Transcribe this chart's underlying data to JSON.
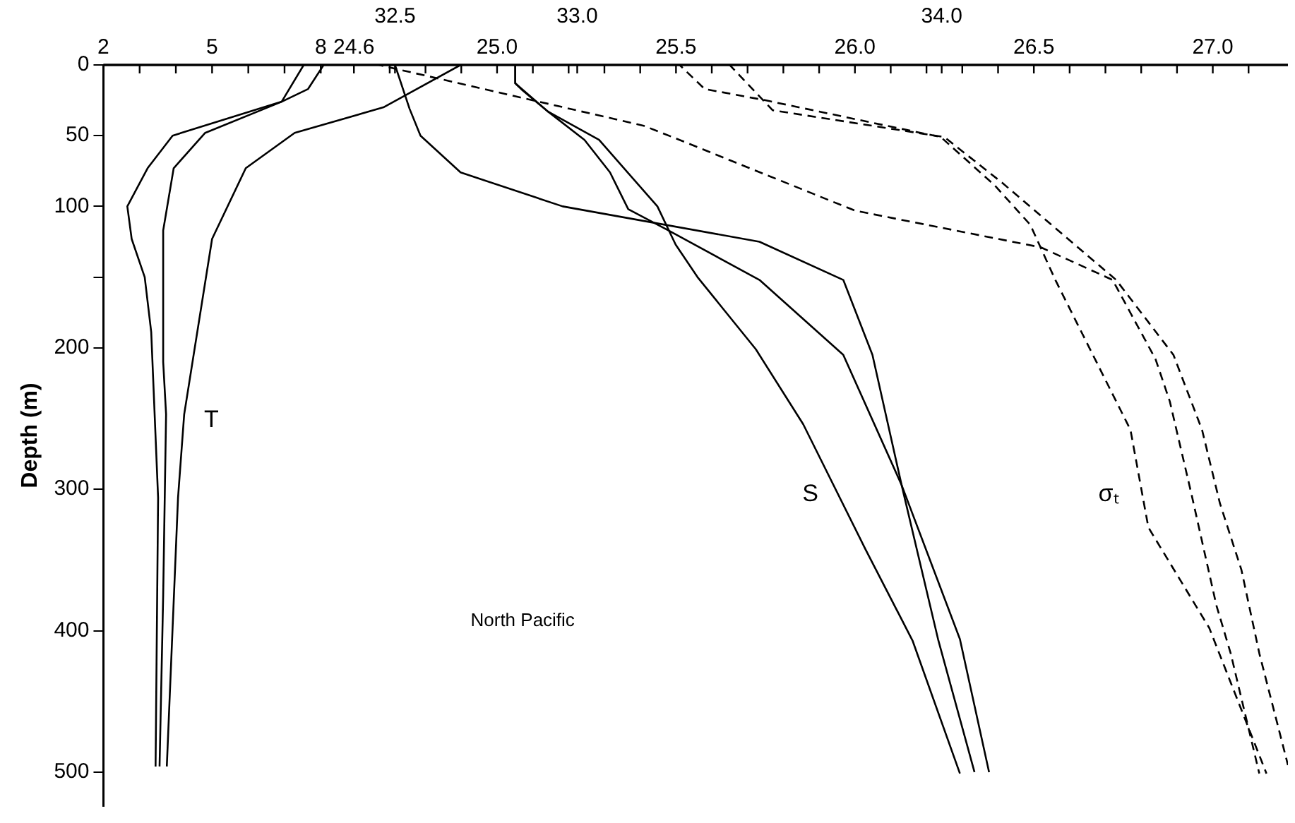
{
  "chart_data": [
    {
      "type": "line",
      "ylabel": "Depth (m)",
      "xlim": [
        2,
        34.7
      ],
      "xticks": [
        2,
        {
          "value": 3,
          "label": null
        },
        {
          "value": 4,
          "label": null
        },
        5,
        {
          "value": 6,
          "label": null
        },
        {
          "value": 7,
          "label": null
        },
        8
      ],
      "x2lim": [
        31.7,
        34.95
      ],
      "x2ticks": [
        32.5,
        {
          "value": 33,
          "label": "33.0"
        },
        {
          "value": 34,
          "label": "34.0"
        }
      ],
      "ylim": [
        524,
        0
      ],
      "yticks": [
        0,
        50,
        100,
        {
          "value": 150,
          "label": null
        },
        200,
        300,
        400,
        500
      ],
      "grid": false,
      "legend": false,
      "marker": "none",
      "series": [
        {
          "color": "#000000",
          "line_style": "solid",
          "x": [
            7.53,
            6.92,
            3.91,
            3.22,
            2.66,
            2.78,
            3.14,
            3.32,
            3.51,
            3.44
          ],
          "values": [
            0,
            26,
            50,
            73,
            100,
            123,
            150,
            189,
            306,
            496
          ]
        },
        {
          "color": "#000000",
          "line_style": "solid",
          "x": [
            8.08,
            7.65,
            6.92,
            4.81,
            3.94,
            3.65,
            3.65,
            3.73,
            3.65,
            3.55
          ],
          "values": [
            0,
            17,
            26,
            48,
            73,
            117,
            210,
            247,
            375,
            496
          ]
        },
        {
          "color": "#000000",
          "line_style": "solid",
          "x": [
            11.86,
            9.73,
            7.28,
            5.93,
            5.0,
            4.23,
            4.06,
            3.75
          ],
          "values": [
            0,
            30,
            48,
            73,
            123,
            247,
            306,
            496
          ]
        },
        {
          "color": "#000000",
          "line_style": "solid",
          "axis": "x2",
          "x": [
            32.5,
            32.54,
            32.57,
            32.68,
            32.96,
            33.5,
            33.73,
            33.81,
            33.85,
            33.89,
            34.05,
            34.13
          ],
          "values": [
            0,
            31,
            50,
            76,
            100,
            125,
            152,
            205,
            251,
            297,
            406,
            500
          ]
        },
        {
          "color": "#000000",
          "line_style": "solid",
          "axis": "x2",
          "x": [
            32.83,
            32.83,
            32.85,
            32.92,
            33.02,
            33.09,
            33.14,
            33.25,
            33.5,
            33.73,
            33.89,
            33.99,
            34.09
          ],
          "values": [
            0,
            13,
            18,
            33,
            53,
            76,
            102,
            117,
            152,
            205,
            297,
            406,
            500
          ]
        },
        {
          "color": "#000000",
          "line_style": "solid",
          "axis": "x2",
          "x": [
            32.83,
            32.83,
            32.92,
            33.06,
            33.22,
            33.27,
            33.33,
            33.49,
            33.62,
            33.79,
            33.92,
            34.05
          ],
          "values": [
            0,
            13,
            33,
            53,
            100,
            127,
            150,
            201,
            254,
            342,
            407,
            501
          ]
        }
      ],
      "annotations": [
        "T",
        "S",
        "North Pacific"
      ]
    },
    {
      "type": "line",
      "xlim": [
        23.9,
        27.21
      ],
      "xticks": [
        24.6,
        {
          "value": 24.7,
          "label": null
        },
        {
          "value": 24.8,
          "label": null
        },
        {
          "value": 24.9,
          "label": null
        },
        {
          "value": 25,
          "label": "25.0"
        },
        {
          "value": 25.1,
          "label": null
        },
        {
          "value": 25.2,
          "label": null
        },
        {
          "value": 25.3,
          "label": null
        },
        {
          "value": 25.4,
          "label": null
        },
        25.5,
        {
          "value": 25.6,
          "label": null
        },
        {
          "value": 25.7,
          "label": null
        },
        {
          "value": 25.8,
          "label": null
        },
        {
          "value": 25.9,
          "label": null
        },
        {
          "value": 26,
          "label": "26.0"
        },
        {
          "value": 26.1,
          "label": null
        },
        {
          "value": 26.2,
          "label": null
        },
        {
          "value": 26.3,
          "label": null
        },
        {
          "value": 26.4,
          "label": null
        },
        26.5,
        {
          "value": 26.6,
          "label": null
        },
        {
          "value": 26.7,
          "label": null
        },
        {
          "value": 26.8,
          "label": null
        },
        {
          "value": 26.9,
          "label": null
        },
        {
          "value": 27,
          "label": "27.0"
        },
        {
          "value": 27.1,
          "label": null
        }
      ],
      "ylim": [
        524,
        0
      ],
      "yticks": [
        0,
        50,
        100,
        {
          "value": 150,
          "label": null
        },
        200,
        300,
        400,
        500
      ],
      "tick_labels": "x",
      "grid": false,
      "legend": false,
      "marker": "none",
      "series": [
        {
          "color": "#000000",
          "line_style": "dashed",
          "x": [
            24.67,
            25.41,
            25.51,
            26.0,
            26.52,
            26.72,
            26.84,
            26.88,
            26.94,
            27.01,
            27.05,
            27.13
          ],
          "values": [
            0,
            43,
            53,
            103,
            129,
            152,
            208,
            238,
            303,
            382,
            416,
            501
          ]
        },
        {
          "color": "#000000",
          "line_style": "dashed",
          "x": [
            25.51,
            25.58,
            25.75,
            26.24,
            26.39,
            26.49,
            26.56,
            26.77,
            26.82,
            26.99,
            27.15
          ],
          "values": [
            0,
            17,
            25,
            51,
            85,
            113,
            152,
            258,
            327,
            398,
            501
          ]
        },
        {
          "color": "#000000",
          "line_style": "dashed",
          "x": [
            25.65,
            25.77,
            26.25,
            26.41,
            26.73,
            26.89,
            26.97,
            27.02,
            27.08,
            27.13,
            27.21
          ],
          "values": [
            0,
            32,
            51,
            83,
            152,
            205,
            258,
            310,
            357,
            416,
            495
          ]
        }
      ],
      "annotations": [
        "σₜ"
      ]
    }
  ]
}
